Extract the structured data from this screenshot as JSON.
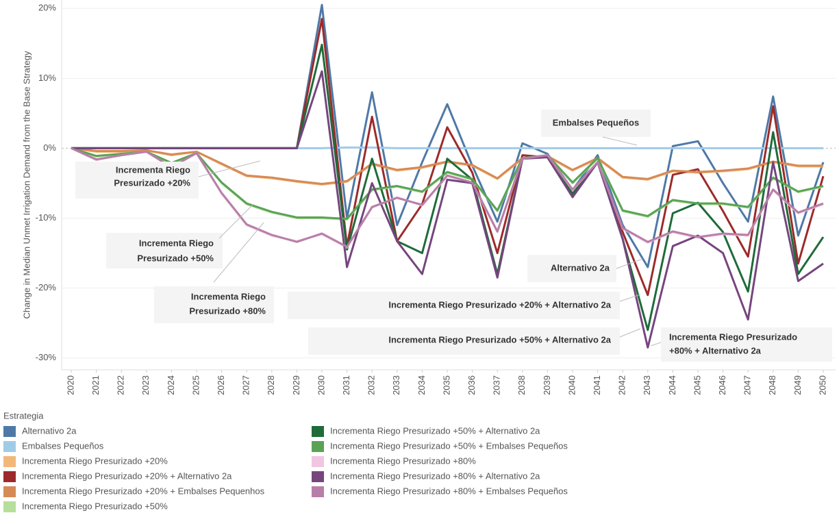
{
  "chart_data": {
    "type": "line",
    "y_label": "Change in Median Unmet Irrigation Demand from the Base Strategy",
    "legend_title": "Estrategia",
    "categories": [
      "2020",
      "2021",
      "2022",
      "2023",
      "2024",
      "2025",
      "2026",
      "2027",
      "2028",
      "2029",
      "2030",
      "2031",
      "2032",
      "2033",
      "2034",
      "2035",
      "2036",
      "2037",
      "2038",
      "2039",
      "2040",
      "2041",
      "2042",
      "2043",
      "2044",
      "2045",
      "2046",
      "2047",
      "2048",
      "2049",
      "2050"
    ],
    "ylim": [
      -31.7,
      21.2
    ],
    "yticks": [
      {
        "value": -30,
        "label": "-30%"
      },
      {
        "value": -20,
        "label": "-20%"
      },
      {
        "value": -10,
        "label": "-10%"
      },
      {
        "value": 0,
        "label": "0%"
      },
      {
        "value": 10,
        "label": "10%"
      },
      {
        "value": 20,
        "label": "20%"
      }
    ],
    "grid": true,
    "series": [
      {
        "name": "Alternativo 2a",
        "color": "#4e79a7",
        "values": [
          0,
          0,
          0,
          0,
          0,
          0,
          0,
          0,
          0,
          0,
          20.5,
          -10,
          8,
          -11,
          -2,
          6.3,
          -2.5,
          -10.5,
          0.7,
          -0.8,
          -6,
          -1,
          -11,
          -17,
          0.3,
          1,
          -5,
          -10.5,
          7.4,
          -12.5,
          -2
        ]
      },
      {
        "name": "Embalses Pequeños",
        "color": "#a0cbe8",
        "values": [
          0,
          0,
          0,
          0,
          0,
          0,
          0,
          0,
          0,
          0,
          0,
          0.1,
          0.1,
          0,
          0,
          0,
          0,
          0,
          0,
          0,
          0,
          0,
          0,
          0,
          0,
          0,
          0,
          0,
          0,
          0,
          0
        ]
      },
      {
        "name": "Incrementa Riego Presurizado +20%",
        "color": "#f1b87a",
        "values": [
          0,
          -0.5,
          -0.5,
          -0.3,
          -1,
          -0.5,
          -2.3,
          -4,
          -4.3,
          -4.8,
          -5.2,
          -4.8,
          -2.3,
          -3.2,
          -2.8,
          -2,
          -2.5,
          -4.4,
          -1.5,
          -1.2,
          -3.2,
          -1.5,
          -4.2,
          -4.5,
          -3.3,
          -3.5,
          -3.3,
          -3,
          -2,
          -2.6,
          -2.6
        ]
      },
      {
        "name": "Incrementa Riego Presurizado +20% + Alternativo 2a",
        "color": "#9d2a2a",
        "values": [
          0,
          0,
          0,
          0,
          0,
          0,
          0,
          0,
          0,
          0,
          18.5,
          -14,
          4.5,
          -13.3,
          -8,
          3,
          -3.5,
          -15,
          -1,
          -1.3,
          -6.8,
          -2,
          -12,
          -21,
          -3.8,
          -3,
          -9,
          -15.5,
          6,
          -16.5,
          -4
        ]
      },
      {
        "name": "Incrementa Riego Presurizado +20% + Embalses Pequenhos",
        "color": "#d68a56",
        "values": [
          0,
          -0.4,
          -0.4,
          -0.3,
          -0.9,
          -0.5,
          -2.2,
          -3.9,
          -4.2,
          -4.7,
          -5.1,
          -4.7,
          -2.2,
          -3.1,
          -2.7,
          -1.9,
          -2.4,
          -4.3,
          -1.4,
          -1.1,
          -3.1,
          -1.4,
          -4.1,
          -4.4,
          -3.2,
          -3.4,
          -3.2,
          -2.9,
          -1.9,
          -2.5,
          -2.5
        ]
      },
      {
        "name": "Incrementa Riego Presurizado +50%",
        "color": "#b5df9b",
        "values": [
          0,
          -1.2,
          -0.8,
          -0.5,
          -2.2,
          -0.7,
          -5,
          -8,
          -9.2,
          -10,
          -10,
          -10.2,
          -6,
          -5.5,
          -6.3,
          -3.5,
          -4.5,
          -9,
          -1.5,
          -1,
          -5,
          -1.5,
          -9,
          -9.8,
          -7.5,
          -8,
          -8,
          -8.5,
          -4.3,
          -6.3,
          -5.5
        ]
      },
      {
        "name": "Incrementa Riego Presurizado +50% + Alternativo 2a",
        "color": "#1f6b3a",
        "values": [
          0,
          0,
          0,
          0,
          0,
          0,
          0,
          0,
          0,
          0,
          14.8,
          -14.5,
          -1.5,
          -13.3,
          -15,
          -1.5,
          -4.5,
          -18,
          -1.5,
          -1.2,
          -6.5,
          -2,
          -13,
          -26,
          -9.3,
          -7.8,
          -12,
          -20.5,
          2.3,
          -18,
          -12.7
        ]
      },
      {
        "name": "Incrementa Riego Presurizado +50% + Embalses Pequeños",
        "color": "#5aa356",
        "values": [
          0,
          -1.1,
          -0.8,
          -0.5,
          -2.1,
          -0.7,
          -4.9,
          -7.9,
          -9.1,
          -9.9,
          -9.9,
          -10.1,
          -5.9,
          -5.4,
          -6.2,
          -3.4,
          -4.4,
          -8.9,
          -1.4,
          -1,
          -4.9,
          -1.4,
          -8.9,
          -9.7,
          -7.4,
          -7.9,
          -7.9,
          -8.4,
          -4.2,
          -6.2,
          -5.4
        ]
      },
      {
        "name": "Incrementa Riego Presurizado +80%",
        "color": "#f1c6e0",
        "values": [
          0,
          -1.7,
          -1,
          -0.5,
          -2.8,
          -0.7,
          -6.5,
          -11,
          -12.5,
          -13.3,
          -12.3,
          -14.2,
          -8.5,
          -7,
          -8.2,
          -4,
          -5,
          -12,
          -1.5,
          -1,
          -6,
          -2,
          -11.5,
          -13.5,
          -12,
          -12.8,
          -12.3,
          -12.5,
          -6,
          -9.3,
          -8
        ]
      },
      {
        "name": "Incrementa Riego Presurizado +80% + Alternativo 2a",
        "color": "#76457e",
        "values": [
          0,
          0,
          0,
          0,
          0,
          0,
          0,
          0,
          0,
          0,
          11,
          -17,
          -5,
          -13.3,
          -18,
          -4.5,
          -5,
          -18.5,
          -1.5,
          -1.3,
          -7,
          -2,
          -13,
          -28.5,
          -14,
          -12.5,
          -15,
          -24.5,
          -2,
          -19,
          -16.5
        ]
      },
      {
        "name": "Incrementa Riego Presurizado +80% + Embalses Pequeños",
        "color": "#b77fa8",
        "values": [
          0,
          -1.6,
          -1,
          -0.5,
          -2.7,
          -0.7,
          -6.4,
          -10.9,
          -12.4,
          -13.4,
          -12.2,
          -14.1,
          -8.4,
          -7.1,
          -8.1,
          -3.9,
          -4.9,
          -11.9,
          -1.5,
          -1,
          -5.9,
          -2,
          -11.4,
          -13.4,
          -11.9,
          -12.7,
          -12.2,
          -12.4,
          -5.9,
          -9.2,
          -7.9
        ]
      }
    ],
    "annotations": [
      {
        "lines": [
          "Embalses Pequeños"
        ]
      },
      {
        "lines": [
          "Incrementa Riego",
          "Presurizado +20%"
        ]
      },
      {
        "lines": [
          "Incrementa Riego",
          "Presurizado +50%"
        ]
      },
      {
        "lines": [
          "Incrementa Riego",
          "Presurizado +80%"
        ]
      },
      {
        "lines": [
          "Alternativo 2a"
        ]
      },
      {
        "lines": [
          "Incrementa Riego Presurizado +20% + Alternativo 2a"
        ]
      },
      {
        "lines": [
          "Incrementa Riego Presurizado +50% + Alternativo 2a"
        ]
      },
      {
        "lines": [
          "Incrementa Riego Presurizado",
          "+80% + Alternativo 2a"
        ]
      }
    ]
  }
}
